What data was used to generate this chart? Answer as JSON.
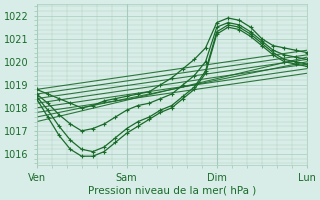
{
  "xlabel": "Pression niveau de la mer( hPa )",
  "ylim": [
    1015.5,
    1022.5
  ],
  "yticks": [
    1016,
    1017,
    1018,
    1019,
    1020,
    1021,
    1022
  ],
  "xlim": [
    0,
    72
  ],
  "xtick_positions": [
    0,
    24,
    48,
    72
  ],
  "xtick_labels": [
    "Ven",
    "Sam",
    "Dim",
    "Lun"
  ],
  "bg_color": "#d8ede8",
  "grid_color": "#a8ccbc",
  "line_color": "#1a6b2a",
  "straight_lines": [
    {
      "x0": 0,
      "y0": 1018.8,
      "x1": 72,
      "y1": 1020.5
    },
    {
      "x0": 0,
      "y0": 1018.6,
      "x1": 72,
      "y1": 1020.3
    },
    {
      "x0": 0,
      "y0": 1018.4,
      "x1": 72,
      "y1": 1020.1
    },
    {
      "x0": 0,
      "y0": 1018.2,
      "x1": 72,
      "y1": 1019.9
    },
    {
      "x0": 0,
      "y0": 1018.0,
      "x1": 72,
      "y1": 1019.7
    },
    {
      "x0": 0,
      "y0": 1017.8,
      "x1": 72,
      "y1": 1019.5
    },
    {
      "x0": 0,
      "y0": 1017.6,
      "x1": 72,
      "y1": 1020.0
    },
    {
      "x0": 0,
      "y0": 1017.4,
      "x1": 72,
      "y1": 1020.2
    }
  ],
  "jagged_series": [
    {
      "x": [
        0,
        3,
        6,
        9,
        12,
        15,
        18,
        21,
        24,
        27,
        30,
        33,
        36,
        39,
        42,
        45,
        48,
        51,
        54,
        57,
        60,
        63,
        66,
        69,
        72
      ],
      "y": [
        1018.8,
        1018.6,
        1018.4,
        1018.2,
        1018.0,
        1018.1,
        1018.3,
        1018.4,
        1018.5,
        1018.6,
        1018.7,
        1019.0,
        1019.3,
        1019.7,
        1020.1,
        1020.6,
        1021.7,
        1021.9,
        1021.8,
        1021.5,
        1021.0,
        1020.7,
        1020.6,
        1020.5,
        1020.4
      ]
    },
    {
      "x": [
        0,
        3,
        6,
        9,
        12,
        15,
        18,
        21,
        24,
        27,
        30,
        33,
        36,
        39,
        42,
        45,
        48,
        51,
        54,
        57,
        60,
        63,
        66,
        69,
        72
      ],
      "y": [
        1018.6,
        1018.2,
        1017.7,
        1017.3,
        1017.0,
        1017.1,
        1017.3,
        1017.6,
        1017.9,
        1018.1,
        1018.2,
        1018.4,
        1018.6,
        1019.0,
        1019.4,
        1020.0,
        1021.5,
        1021.7,
        1021.6,
        1021.3,
        1020.9,
        1020.5,
        1020.3,
        1020.2,
        1020.1
      ]
    },
    {
      "x": [
        0,
        3,
        6,
        9,
        12,
        15,
        18,
        21,
        24,
        27,
        30,
        33,
        36,
        39,
        42,
        45,
        48,
        51,
        54,
        57,
        60,
        63,
        66,
        69,
        72
      ],
      "y": [
        1018.5,
        1017.9,
        1017.2,
        1016.6,
        1016.2,
        1016.1,
        1016.3,
        1016.7,
        1017.1,
        1017.4,
        1017.6,
        1017.9,
        1018.1,
        1018.5,
        1018.9,
        1019.6,
        1021.3,
        1021.6,
        1021.5,
        1021.2,
        1020.8,
        1020.4,
        1020.1,
        1020.0,
        1019.9
      ]
    },
    {
      "x": [
        0,
        3,
        6,
        9,
        12,
        15,
        18,
        21,
        24,
        27,
        30,
        33,
        36,
        39,
        42,
        45,
        48,
        51,
        54,
        57,
        60,
        63,
        66,
        69,
        72
      ],
      "y": [
        1018.4,
        1017.6,
        1016.8,
        1016.2,
        1015.9,
        1015.9,
        1016.1,
        1016.5,
        1016.9,
        1017.2,
        1017.5,
        1017.8,
        1018.0,
        1018.4,
        1018.8,
        1019.5,
        1021.2,
        1021.5,
        1021.4,
        1021.1,
        1020.7,
        1020.3,
        1020.0,
        1019.9,
        1019.8
      ]
    }
  ]
}
